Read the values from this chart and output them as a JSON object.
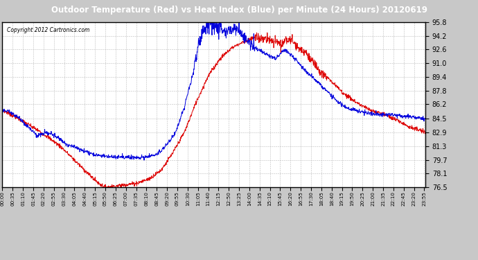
{
  "title": "Outdoor Temperature (Red) vs Heat Index (Blue) per Minute (24 Hours) 20120619",
  "copyright": "Copyright 2012 Cartronics.com",
  "ylim": [
    76.5,
    95.8
  ],
  "yticks": [
    76.5,
    78.1,
    79.7,
    81.3,
    82.9,
    84.5,
    86.2,
    87.8,
    89.4,
    91.0,
    92.6,
    94.2,
    95.8
  ],
  "bg_color": "#c8c8c8",
  "plot_bg": "#ffffff",
  "red_color": "#dd0000",
  "blue_color": "#0000dd",
  "grid_color": "#aaaaaa",
  "title_bg": "#000000",
  "title_fg": "#ffffff",
  "tick_interval_minutes": 35
}
